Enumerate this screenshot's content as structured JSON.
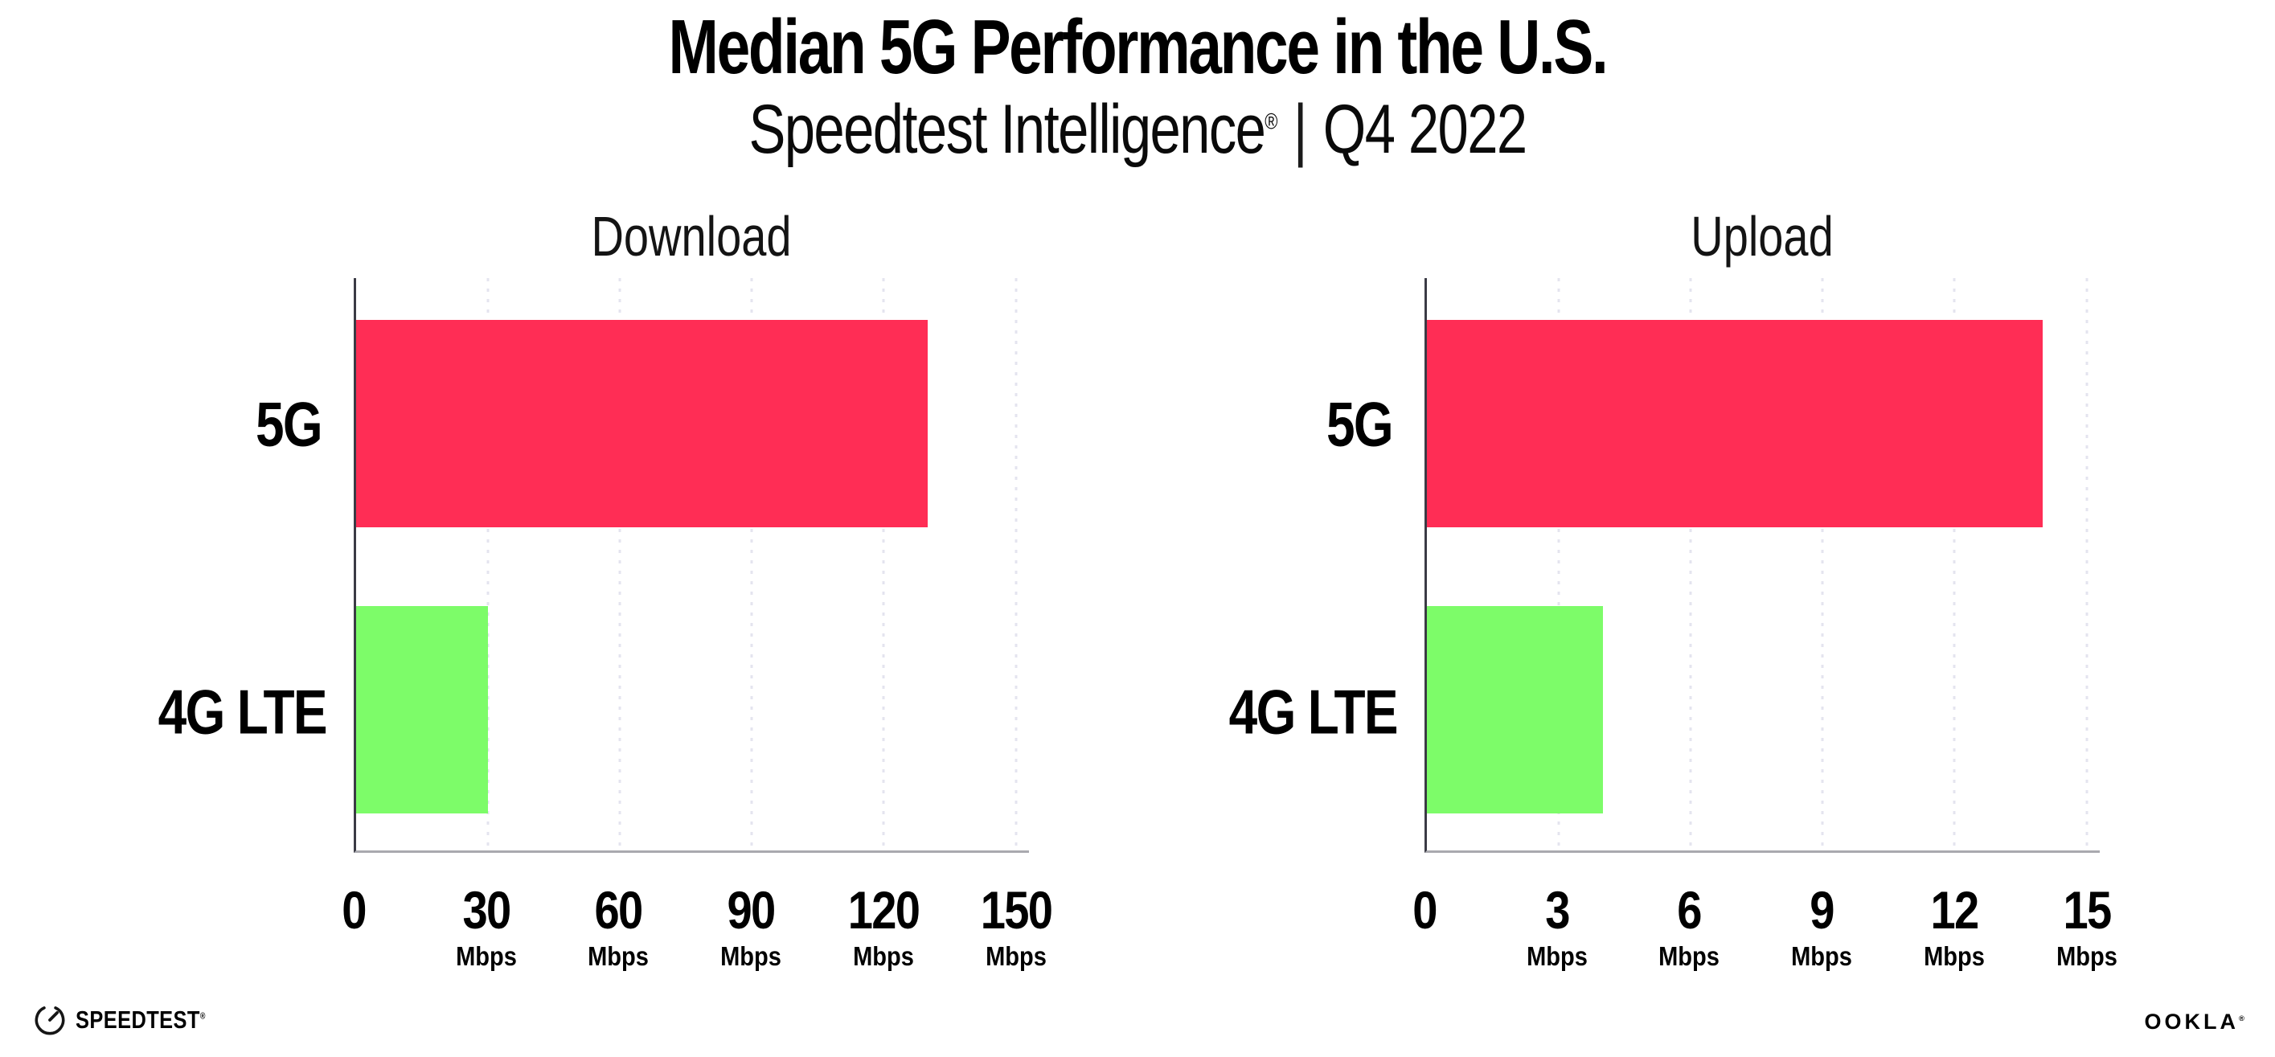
{
  "header": {
    "title": "Median 5G Performance in the U.S.",
    "subtitle_product": "Speedtest Intelligence",
    "subtitle_reg": "®",
    "subtitle_separator": "|",
    "subtitle_period": "Q4 2022"
  },
  "chart_data": [
    {
      "type": "bar",
      "orientation": "horizontal",
      "title": "Download",
      "categories": [
        "5G",
        "4G LTE"
      ],
      "values": [
        130,
        30
      ],
      "unit": "Mbps",
      "colors": [
        "#FF2D55",
        "#7DFC69"
      ],
      "xlim": [
        0,
        153
      ],
      "ticks": [
        0,
        30,
        60,
        90,
        120,
        150
      ],
      "grid": "dotted-vertical",
      "legend": "none"
    },
    {
      "type": "bar",
      "orientation": "horizontal",
      "title": "Upload",
      "categories": [
        "5G",
        "4G LTE"
      ],
      "values": [
        14,
        4
      ],
      "unit": "Mbps",
      "colors": [
        "#FF2D55",
        "#7DFC69"
      ],
      "xlim": [
        0,
        15.3
      ],
      "ticks": [
        0,
        3,
        6,
        9,
        12,
        15
      ],
      "grid": "dotted-vertical",
      "legend": "none"
    }
  ],
  "footer": {
    "speedtest_icon": "speedtest-gauge-icon",
    "speedtest_text": "SPEEDTEST",
    "speedtest_mark": "®",
    "ookla_text": "OOKLA",
    "ookla_mark": "®"
  },
  "style_colors": {
    "bar_5g": "#FF2D55",
    "bar_4g_lte": "#7DFC69",
    "gridline": "#E4E4EF",
    "y_axis": "#3B3B45",
    "x_axis": "#A9A9AF"
  }
}
